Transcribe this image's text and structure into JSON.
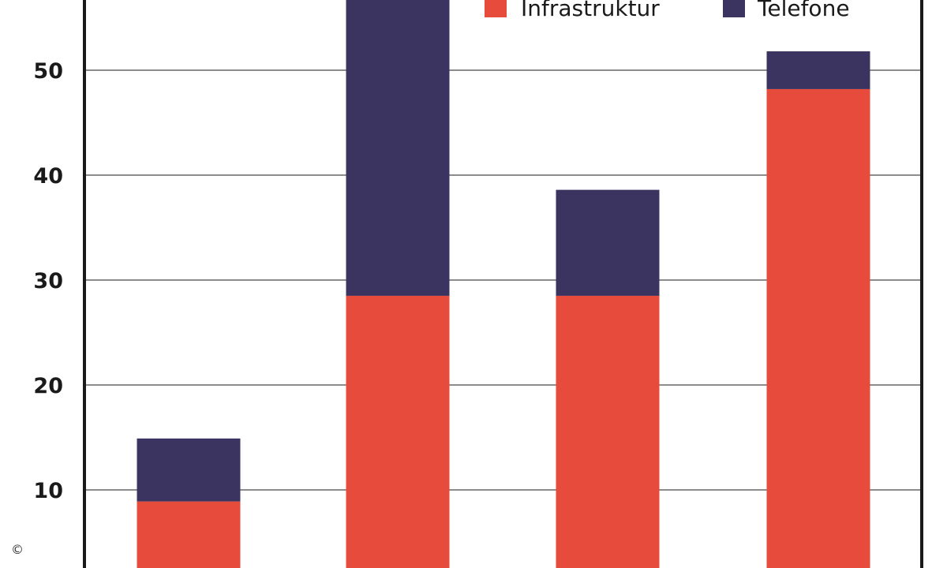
{
  "chart_data": {
    "type": "bar",
    "stacked": true,
    "categories": [
      "",
      "",
      "",
      ""
    ],
    "series": [
      {
        "name": "Infrastruktur",
        "color": "#e64b3c",
        "values": [
          8.9,
          28.5,
          28.5,
          48.2
        ]
      },
      {
        "name": "Telefone",
        "color": "#3b3460",
        "values": [
          6.0,
          30.5,
          10.1,
          3.6
        ]
      }
    ],
    "ylim": [
      0,
      60
    ],
    "yticks": [
      10,
      20,
      30,
      40,
      50
    ],
    "grid": true,
    "legend_position": "top-right",
    "title": "",
    "xlabel": "",
    "ylabel": ""
  },
  "copyright_symbol": "©"
}
